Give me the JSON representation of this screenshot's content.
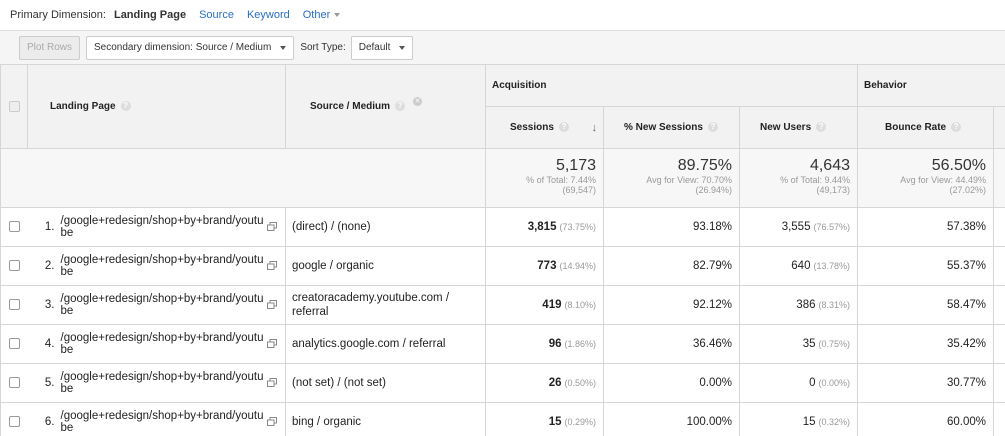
{
  "primary_dimension": {
    "label": "Primary Dimension:",
    "active": "Landing Page",
    "options": [
      "Source",
      "Keyword"
    ],
    "other": "Other"
  },
  "toolbar": {
    "plot_rows": "Plot Rows",
    "secondary_dimension": "Secondary dimension: Source / Medium",
    "sort_type_label": "Sort Type:",
    "sort_type_value": "Default"
  },
  "headers": {
    "landing_page": "Landing Page",
    "source_medium": "Source / Medium",
    "acquisition": "Acquisition",
    "behavior": "Behavior",
    "sessions": "Sessions",
    "new_sessions": "% New Sessions",
    "new_users": "New Users",
    "bounce_rate": "Bounce Rate"
  },
  "totals": {
    "sessions": {
      "value": "5,173",
      "sub1": "% of Total: 7.44%",
      "sub2": "(69,547)"
    },
    "new_sessions": {
      "value": "89.75%",
      "sub1": "Avg for View: 70.70%",
      "sub2": "(26.94%)"
    },
    "new_users": {
      "value": "4,643",
      "sub1": "% of Total: 9.44%",
      "sub2": "(49,173)"
    },
    "bounce_rate": {
      "value": "56.50%",
      "sub1": "Avg for View: 44.49%",
      "sub2": "(27.02%)"
    }
  },
  "rows": [
    {
      "rank": "1.",
      "page": "/google+redesign/shop+by+brand/youtube",
      "source": "(direct) / (none)",
      "sessions": "3,815",
      "sessions_pct": "(73.75%)",
      "new_sessions": "93.18%",
      "new_users": "3,555",
      "new_users_pct": "(76.57%)",
      "bounce": "57.38%"
    },
    {
      "rank": "2.",
      "page": "/google+redesign/shop+by+brand/youtube",
      "source": "google / organic",
      "sessions": "773",
      "sessions_pct": "(14.94%)",
      "new_sessions": "82.79%",
      "new_users": "640",
      "new_users_pct": "(13.78%)",
      "bounce": "55.37%"
    },
    {
      "rank": "3.",
      "page": "/google+redesign/shop+by+brand/youtube",
      "source": "creatoracademy.youtube.com / referral",
      "sessions": "419",
      "sessions_pct": "(8.10%)",
      "new_sessions": "92.12%",
      "new_users": "386",
      "new_users_pct": "(8.31%)",
      "bounce": "58.47%"
    },
    {
      "rank": "4.",
      "page": "/google+redesign/shop+by+brand/youtube",
      "source": "analytics.google.com / referral",
      "sessions": "96",
      "sessions_pct": "(1.86%)",
      "new_sessions": "36.46%",
      "new_users": "35",
      "new_users_pct": "(0.75%)",
      "bounce": "35.42%"
    },
    {
      "rank": "5.",
      "page": "/google+redesign/shop+by+brand/youtube",
      "source": "(not set) / (not set)",
      "sessions": "26",
      "sessions_pct": "(0.50%)",
      "new_sessions": "0.00%",
      "new_users": "0",
      "new_users_pct": "(0.00%)",
      "bounce": "30.77%"
    },
    {
      "rank": "6.",
      "page": "/google+redesign/shop+by+brand/youtube",
      "source": "bing / organic",
      "sessions": "15",
      "sessions_pct": "(0.29%)",
      "new_sessions": "100.00%",
      "new_users": "15",
      "new_users_pct": "(0.32%)",
      "bounce": "60.00%"
    }
  ]
}
